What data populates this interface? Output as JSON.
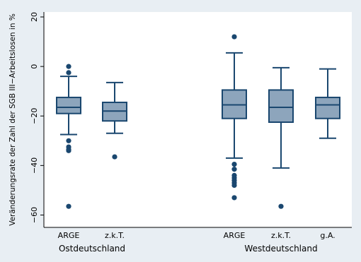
{
  "chart_data": {
    "type": "box",
    "ylabel": "Veränderungsrate der Zahl der SGB III−Arbeitslosen in %",
    "ylim": [
      -65,
      22
    ],
    "yticks": [
      20,
      0,
      -20,
      -40,
      -60
    ],
    "ytick_labels": [
      "20",
      "0",
      "−20",
      "−40",
      "−60"
    ],
    "grid": false,
    "groups": [
      {
        "label": "Ostdeutschland",
        "boxes": [
          {
            "label": "ARGE",
            "whisker_low": -27.5,
            "q1": -19,
            "median": -16.5,
            "q3": -12.5,
            "whisker_high": -4,
            "outliers": [
              0,
              -2.5,
              -30,
              -32.5,
              -33.5,
              -34,
              -56.5
            ]
          },
          {
            "label": "z.k.T.",
            "whisker_low": -27,
            "q1": -22,
            "median": -18,
            "q3": -14.5,
            "whisker_high": -6.5,
            "outliers": [
              -36.5
            ]
          }
        ]
      },
      {
        "label": "Westdeutschland",
        "boxes": [
          {
            "label": "ARGE",
            "whisker_low": -37,
            "q1": -21,
            "median": -15.5,
            "q3": -9.5,
            "whisker_high": 5.5,
            "outliers": [
              12,
              -39.5,
              -41.5,
              -44,
              -45,
              -46,
              -47,
              -48,
              -53
            ]
          },
          {
            "label": "z.k.T.",
            "whisker_low": -41,
            "q1": -22.5,
            "median": -16.5,
            "q3": -9.5,
            "whisker_high": -0.5,
            "outliers": [
              -56.5
            ]
          },
          {
            "label": "g.A.",
            "whisker_low": -29,
            "q1": -21,
            "median": -15.5,
            "q3": -12.5,
            "whisker_high": -1,
            "outliers": []
          }
        ]
      }
    ],
    "colors": {
      "background": "#e8eef3",
      "plot_area": "#ffffff",
      "box_fill": "#8da5bc",
      "box_line": "#1a476f",
      "outlier": "#1a476f"
    }
  }
}
